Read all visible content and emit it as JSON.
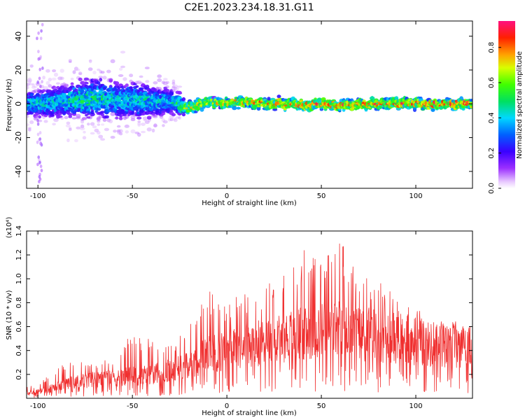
{
  "title": "C2E1.2023.234.18.31.G11",
  "colors": {
    "snr_line": "#f03030",
    "axis": "#000000",
    "background": "#ffffff"
  },
  "chart_data": [
    {
      "type": "heatmap",
      "xlabel": "Height of straight line (km)",
      "ylabel": "Frequency (Hz)",
      "xlim": [
        -106,
        130
      ],
      "ylim": [
        -50,
        49
      ],
      "xticks": [
        -100,
        -50,
        0,
        50,
        100
      ],
      "yticks": [
        -40,
        -20,
        0,
        20,
        40
      ],
      "colorbar": {
        "label": "Normalized spectral amplitude",
        "range": [
          0,
          0.95
        ],
        "ticks": [
          0.0,
          0.2,
          0.4,
          0.6,
          0.8
        ],
        "colormap": "rainbow"
      },
      "ridge": {
        "x": [
          -105,
          -100,
          -90,
          -80,
          -70,
          -60,
          -50,
          -40,
          -30,
          -20,
          -15,
          -10,
          0,
          10,
          20,
          30,
          40,
          50,
          60,
          70,
          80,
          90,
          100,
          110,
          120,
          130
        ],
        "center_freq": [
          0,
          0,
          1,
          2,
          3,
          2,
          2,
          1,
          1,
          -2,
          -1,
          1,
          0,
          1,
          0,
          0,
          -1,
          0,
          -1,
          0,
          0,
          0,
          0,
          0,
          0,
          0
        ],
        "half_width": [
          6,
          6,
          7,
          8,
          9,
          8,
          8,
          7,
          6,
          4,
          4,
          3,
          3,
          3,
          3,
          3,
          3,
          3,
          3,
          3,
          3,
          3,
          3,
          3,
          3,
          3
        ],
        "peak_amplitude": [
          0.45,
          0.5,
          0.45,
          0.55,
          0.55,
          0.5,
          0.5,
          0.5,
          0.45,
          0.75,
          0.8,
          0.75,
          0.8,
          0.85,
          0.85,
          0.85,
          0.9,
          0.9,
          0.9,
          0.9,
          0.9,
          0.9,
          0.92,
          0.92,
          0.95,
          0.95
        ]
      }
    },
    {
      "type": "line",
      "xlabel": "Height of straight line (km)",
      "ylabel": "SNR (10 * v/v)",
      "y_multiplier": "(x10⁴)",
      "xlim": [
        -106,
        130
      ],
      "ylim": [
        0,
        1.4
      ],
      "xticks": [
        -100,
        -50,
        0,
        50,
        100
      ],
      "yticks": [
        0.2,
        0.4,
        0.6,
        0.8,
        1.0,
        1.2,
        1.4
      ],
      "series": [
        {
          "x": [
            -105,
            -100,
            -90,
            -80,
            -70,
            -60,
            -50,
            -40,
            -30,
            -20,
            -10,
            0,
            10,
            20,
            30,
            40,
            50,
            60,
            70,
            80,
            90,
            100,
            110,
            120,
            130
          ],
          "baseline": [
            0.04,
            0.05,
            0.09,
            0.13,
            0.15,
            0.16,
            0.18,
            0.19,
            0.22,
            0.26,
            0.35,
            0.38,
            0.42,
            0.45,
            0.5,
            0.52,
            0.55,
            0.55,
            0.52,
            0.5,
            0.48,
            0.45,
            0.42,
            0.42,
            0.42
          ],
          "upper_envelope": [
            0.1,
            0.12,
            0.25,
            0.35,
            0.3,
            0.35,
            0.55,
            0.5,
            0.45,
            0.6,
            0.95,
            0.8,
            0.9,
            0.95,
            1.05,
            1.25,
            1.15,
            1.35,
            1.05,
            1.0,
            0.85,
            0.75,
            0.7,
            0.65,
            0.6
          ]
        }
      ]
    }
  ]
}
